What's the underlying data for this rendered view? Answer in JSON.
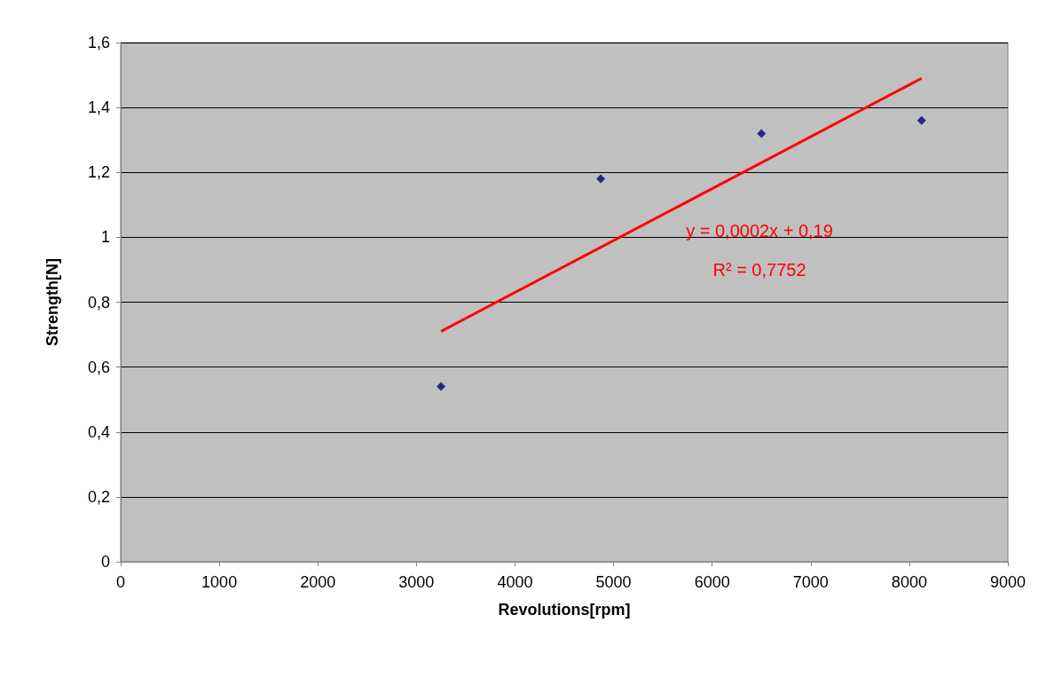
{
  "chart_data": {
    "type": "scatter",
    "xlabel": "Revolutions[rpm]",
    "ylabel": "Strength[N]",
    "xlim": [
      0,
      9000
    ],
    "xticks": [
      0,
      1000,
      2000,
      3000,
      4000,
      5000,
      6000,
      7000,
      8000,
      9000
    ],
    "ylim": [
      0,
      1.6
    ],
    "yticks": [
      0,
      {
        "value": 0.2,
        "label": "0,2"
      },
      {
        "value": 0.4,
        "label": "0,4"
      },
      {
        "value": 0.6,
        "label": "0,6"
      },
      {
        "value": 0.8,
        "label": "0,8"
      },
      1,
      {
        "value": 1.2,
        "label": "1,2"
      },
      {
        "value": 1.4,
        "label": "1,4"
      },
      {
        "value": 1.6,
        "label": "1,6"
      }
    ],
    "grid": "y",
    "series": [
      {
        "color": "#000080",
        "marker": "diamond",
        "x": [
          3250,
          4870,
          6500,
          8125
        ],
        "values": [
          0.54,
          1.18,
          1.32,
          1.36
        ]
      },
      {
        "type": "line",
        "color": "#ff0000",
        "marker": "none",
        "line_style": "solid",
        "x": [
          3250,
          8125
        ],
        "values": [
          0.71,
          1.49
        ]
      }
    ],
    "annotations": [
      "y = 0,0002x + 0,19",
      "R² = 0,7752"
    ]
  }
}
